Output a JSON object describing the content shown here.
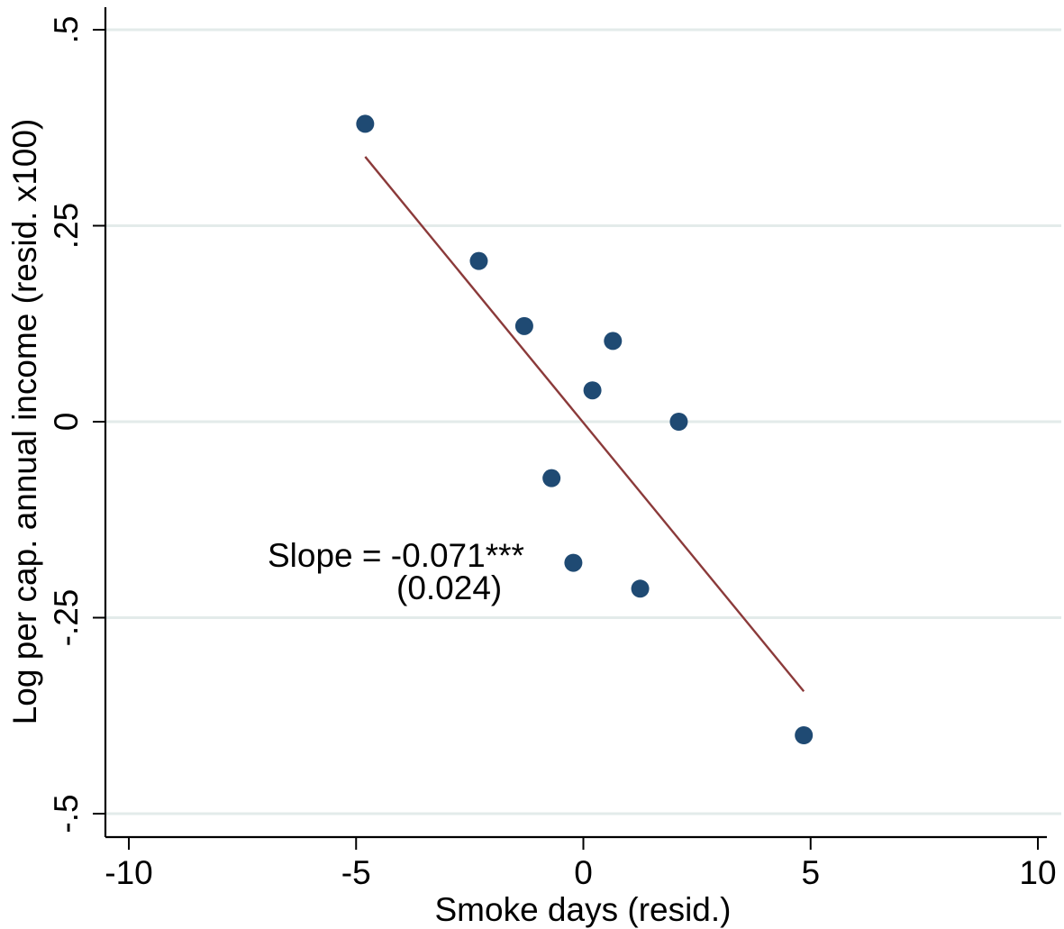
{
  "chart_data": {
    "type": "scatter",
    "title": "",
    "xlabel": "Smoke days (resid.)",
    "ylabel": "Log per cap. annual income (resid. x100)",
    "xlim": [
      -10,
      10
    ],
    "ylim": [
      -0.5,
      0.5
    ],
    "x_ticks": [
      -10,
      -5,
      0,
      5,
      10
    ],
    "x_tick_labels": [
      "-10",
      "-5",
      "0",
      "5",
      "10"
    ],
    "y_ticks": [
      -0.5,
      -0.25,
      0,
      0.25,
      0.5
    ],
    "y_tick_labels": [
      "-.5",
      "-.25",
      "0",
      ".25",
      ".5"
    ],
    "grid": "horizontal",
    "series": [
      {
        "marker_color": "#1f4a73",
        "points": [
          {
            "x": -4.8,
            "y": 0.38
          },
          {
            "x": -2.3,
            "y": 0.205
          },
          {
            "x": -1.3,
            "y": 0.122
          },
          {
            "x": 0.65,
            "y": 0.103
          },
          {
            "x": 0.2,
            "y": 0.04
          },
          {
            "x": 2.1,
            "y": 0.0
          },
          {
            "x": -0.7,
            "y": -0.072
          },
          {
            "x": -0.22,
            "y": -0.18
          },
          {
            "x": 1.25,
            "y": -0.213
          },
          {
            "x": 4.85,
            "y": -0.4
          }
        ]
      }
    ],
    "fit_line": {
      "color": "#8b3a3a",
      "x": [
        -4.8,
        4.85
      ],
      "y": [
        0.338,
        -0.344
      ]
    },
    "annotation": {
      "line1": "Slope = -0.071***",
      "line2": "(0.024)"
    },
    "colors": {
      "gridline": "#e3ebea",
      "axis": "#000000"
    }
  }
}
